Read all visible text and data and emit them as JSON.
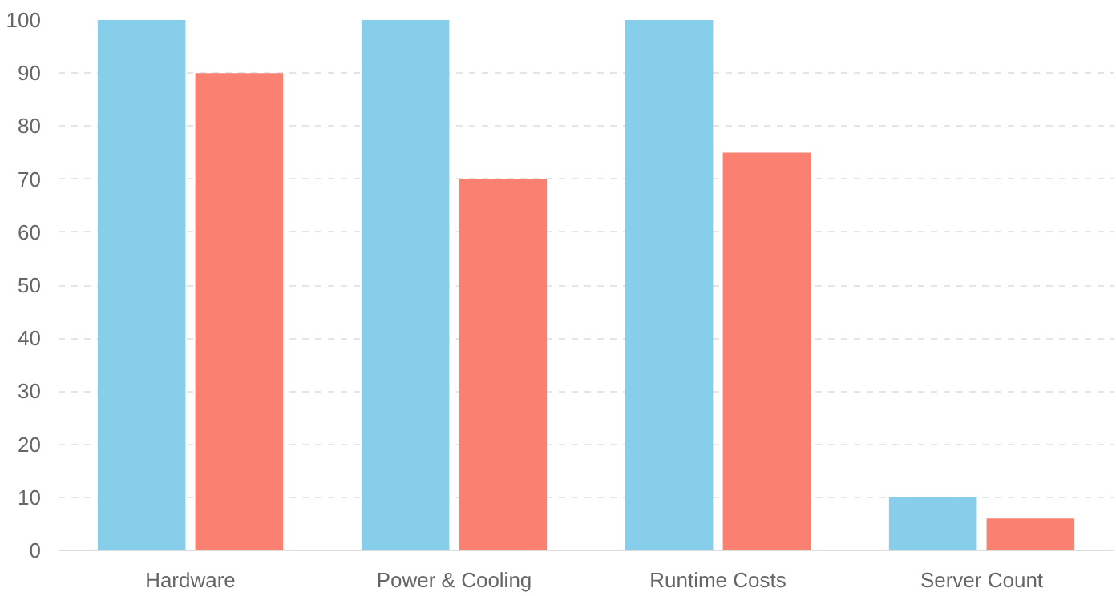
{
  "chart_data": {
    "type": "bar",
    "categories": [
      "Hardware",
      "Power & Cooling",
      "Runtime Costs",
      "Server Count"
    ],
    "series": [
      {
        "color": "#87ceeb",
        "values": [
          100,
          100,
          100,
          10
        ]
      },
      {
        "color": "#fa8072",
        "values": [
          90,
          70,
          75,
          6
        ]
      }
    ],
    "ylim": [
      0,
      100
    ],
    "yticks": [
      0,
      10,
      20,
      30,
      40,
      50,
      60,
      70,
      80,
      90,
      100
    ],
    "grid": "y"
  }
}
